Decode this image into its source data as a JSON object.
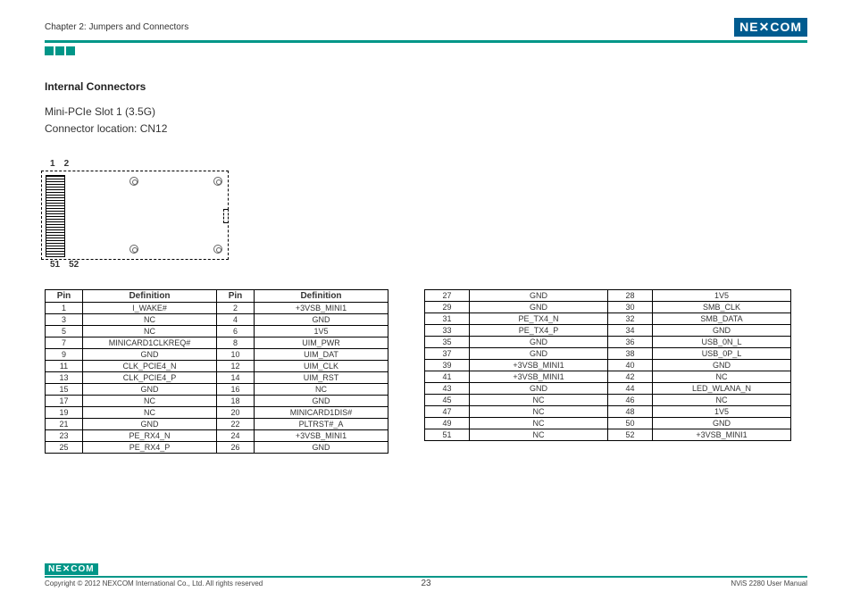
{
  "header": {
    "chapter": "Chapter 2: Jumpers and Connectors",
    "logo": "NE COM"
  },
  "section": {
    "title": "Internal Connectors",
    "slot": "Mini-PCIe Slot 1 (3.5G)",
    "location": "Connector location: CN12"
  },
  "diagram": {
    "top_pins": [
      "1",
      "2"
    ],
    "bottom_pins": [
      "51",
      "52"
    ]
  },
  "table_left": {
    "headers": [
      "Pin",
      "Definition",
      "Pin",
      "Definition"
    ],
    "rows": [
      [
        "1",
        "I_WAKE#",
        "2",
        "+3VSB_MINI1"
      ],
      [
        "3",
        "NC",
        "4",
        "GND"
      ],
      [
        "5",
        "NC",
        "6",
        "1V5"
      ],
      [
        "7",
        "MINICARD1CLKREQ#",
        "8",
        "UIM_PWR"
      ],
      [
        "9",
        "GND",
        "10",
        "UIM_DAT"
      ],
      [
        "11",
        "CLK_PCIE4_N",
        "12",
        "UIM_CLK"
      ],
      [
        "13",
        "CLK_PCIE4_P",
        "14",
        "UIM_RST"
      ],
      [
        "15",
        "GND",
        "16",
        "NC"
      ],
      [
        "17",
        "NC",
        "18",
        "GND"
      ],
      [
        "19",
        "NC",
        "20",
        "MINICARD1DIS#"
      ],
      [
        "21",
        "GND",
        "22",
        "PLTRST#_A"
      ],
      [
        "23",
        "PE_RX4_N",
        "24",
        "+3VSB_MINI1"
      ],
      [
        "25",
        "PE_RX4_P",
        "26",
        "GND"
      ]
    ]
  },
  "table_right": {
    "rows": [
      [
        "27",
        "GND",
        "28",
        "1V5"
      ],
      [
        "29",
        "GND",
        "30",
        "SMB_CLK"
      ],
      [
        "31",
        "PE_TX4_N",
        "32",
        "SMB_DATA"
      ],
      [
        "33",
        "PE_TX4_P",
        "34",
        "GND"
      ],
      [
        "35",
        "GND",
        "36",
        "USB_0N_L"
      ],
      [
        "37",
        "GND",
        "38",
        "USB_0P_L"
      ],
      [
        "39",
        "+3VSB_MINI1",
        "40",
        "GND"
      ],
      [
        "41",
        "+3VSB_MINI1",
        "42",
        "NC"
      ],
      [
        "43",
        "GND",
        "44",
        "LED_WLANA_N"
      ],
      [
        "45",
        "NC",
        "46",
        "NC"
      ],
      [
        "47",
        "NC",
        "48",
        "1V5"
      ],
      [
        "49",
        "NC",
        "50",
        "GND"
      ],
      [
        "51",
        "NC",
        "52",
        "+3VSB_MINI1"
      ]
    ]
  },
  "footer": {
    "logo": "NE COM",
    "copyright": "Copyright © 2012 NEXCOM International Co., Ltd. All rights reserved",
    "page": "23",
    "manual": "NViS 2280 User Manual"
  }
}
